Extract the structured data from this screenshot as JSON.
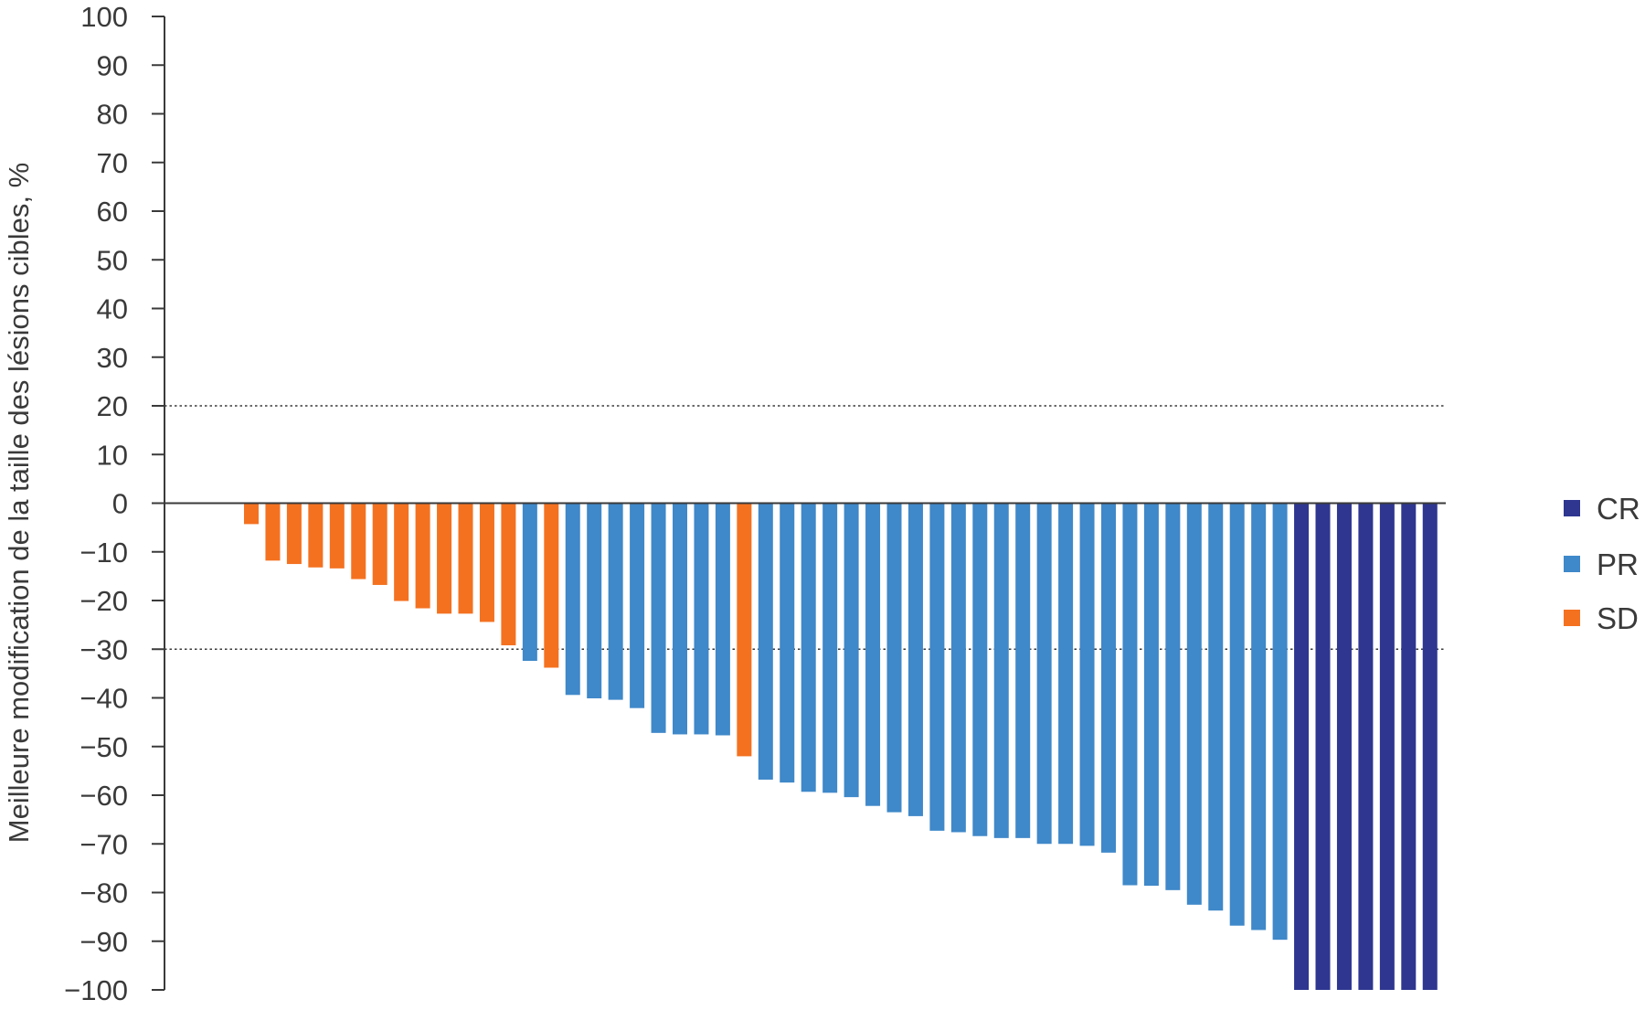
{
  "chart_data": {
    "type": "bar",
    "title": "",
    "xlabel": "",
    "ylabel": "Meilleure modification de la taille des lésions cibles, %",
    "ylim": [
      -100,
      100
    ],
    "yticks": [
      100,
      90,
      80,
      70,
      60,
      50,
      40,
      30,
      20,
      10,
      0,
      -10,
      -20,
      -30,
      -40,
      -50,
      -60,
      -70,
      -80,
      -90,
      -100
    ],
    "ytick_labels": [
      "100",
      "90",
      "80",
      "70",
      "60",
      "50",
      "40",
      "30",
      "20",
      "10",
      "0",
      "−10",
      "−20",
      "−30",
      "−40",
      "−50",
      "−60",
      "−70",
      "−80",
      "−90",
      "−100"
    ],
    "reference_lines": [
      20,
      -30
    ],
    "grid": false,
    "legend_position": "right",
    "legend": [
      {
        "label": "CR",
        "color": "#2e3690"
      },
      {
        "label": "PR",
        "color": "#3f88c9"
      },
      {
        "label": "SD",
        "color": "#f47120"
      }
    ],
    "values": [
      -4.3,
      -11.8,
      -12.5,
      -13.2,
      -13.4,
      -15.6,
      -16.8,
      -20.1,
      -21.6,
      -22.7,
      -22.7,
      -24.4,
      -29.2,
      -32.4,
      -33.8,
      -39.4,
      -40.1,
      -40.4,
      -42.1,
      -47.2,
      -47.5,
      -47.5,
      -47.7,
      -52.0,
      -56.8,
      -57.4,
      -59.3,
      -59.5,
      -60.4,
      -62.2,
      -63.5,
      -64.3,
      -67.3,
      -67.6,
      -68.4,
      -68.8,
      -68.8,
      -70.0,
      -70.0,
      -70.4,
      -71.8,
      -78.5,
      -78.6,
      -79.5,
      -82.5,
      -83.7,
      -86.8,
      -87.7,
      -89.7,
      -100,
      -100,
      -100,
      -100,
      -100,
      -100,
      -100
    ],
    "groups": [
      "SD",
      "SD",
      "SD",
      "SD",
      "SD",
      "SD",
      "SD",
      "SD",
      "SD",
      "SD",
      "SD",
      "SD",
      "SD",
      "PR",
      "SD",
      "PR",
      "PR",
      "PR",
      "PR",
      "PR",
      "PR",
      "PR",
      "PR",
      "SD",
      "PR",
      "PR",
      "PR",
      "PR",
      "PR",
      "PR",
      "PR",
      "PR",
      "PR",
      "PR",
      "PR",
      "PR",
      "PR",
      "PR",
      "PR",
      "PR",
      "PR",
      "PR",
      "PR",
      "PR",
      "PR",
      "PR",
      "PR",
      "PR",
      "PR",
      "CR",
      "CR",
      "CR",
      "CR",
      "CR",
      "CR",
      "CR"
    ]
  }
}
